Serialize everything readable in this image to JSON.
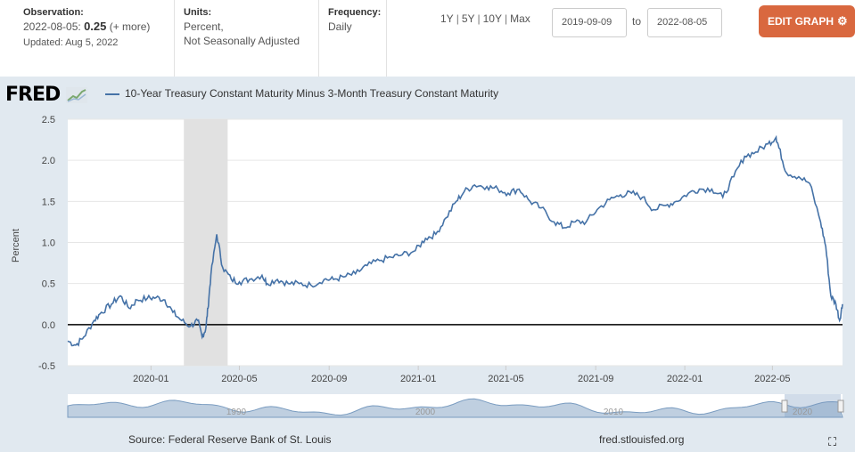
{
  "observation": {
    "label": "Observation:",
    "date": "2022-08-05:",
    "value": "0.25",
    "change": "(+ more)",
    "updated": "Updated: Aug 5, 2022"
  },
  "units": {
    "label": "Units:",
    "line1": "Percent,",
    "line2": "Not Seasonally Adjusted"
  },
  "frequency": {
    "label": "Frequency:",
    "value": "Daily"
  },
  "ranges": [
    "1Y",
    "5Y",
    "10Y",
    "Max"
  ],
  "date_from": "2019-09-09",
  "date_to": "2022-08-05",
  "to_label": "to",
  "edit_button": "EDIT GRAPH",
  "logo_text": "FRED",
  "source": "Source: Federal Reserve Bank of St. Louis",
  "site": "fred.stlouisfed.org",
  "colors": {
    "line": "#4572a7",
    "accent": "#d9683f",
    "recession": "#e1e1e1"
  },
  "chart_data": {
    "type": "line",
    "title": "",
    "ylabel": "Percent",
    "ylim": [
      -0.5,
      2.5
    ],
    "yticks": [
      "2.5",
      "2.0",
      "1.5",
      "1.0",
      "0.5",
      "0.0",
      "-0.5"
    ],
    "xticks": [
      "2020-01",
      "2020-05",
      "2020-09",
      "2021-01",
      "2021-05",
      "2021-09",
      "2022-01",
      "2022-05"
    ],
    "navigator_labels": [
      "1990",
      "2000",
      "2010",
      "2020"
    ],
    "series": [
      {
        "name": "10-Year Treasury Constant Maturity Minus 3-Month Treasury Constant Maturity",
        "x": [
          "2019-09-09",
          "2019-09-20",
          "2019-10-01",
          "2019-10-15",
          "2019-10-25",
          "2019-11-08",
          "2019-11-20",
          "2019-12-02",
          "2019-12-13",
          "2019-12-27",
          "2020-01-08",
          "2020-01-20",
          "2020-01-31",
          "2020-02-12",
          "2020-02-24",
          "2020-03-05",
          "2020-03-11",
          "2020-03-16",
          "2020-03-19",
          "2020-03-23",
          "2020-03-31",
          "2020-04-08",
          "2020-04-20",
          "2020-05-01",
          "2020-05-15",
          "2020-06-01",
          "2020-06-08",
          "2020-06-22",
          "2020-07-07",
          "2020-07-22",
          "2020-08-07",
          "2020-08-25",
          "2020-09-07",
          "2020-09-21",
          "2020-10-07",
          "2020-10-23",
          "2020-11-09",
          "2020-11-25",
          "2020-12-10",
          "2020-12-28",
          "2021-01-11",
          "2021-01-25",
          "2021-02-08",
          "2021-02-22",
          "2021-03-05",
          "2021-03-19",
          "2021-04-05",
          "2021-04-20",
          "2021-05-04",
          "2021-05-19",
          "2021-06-03",
          "2021-06-18",
          "2021-07-06",
          "2021-07-20",
          "2021-08-04",
          "2021-08-19",
          "2021-09-03",
          "2021-09-20",
          "2021-10-05",
          "2021-10-20",
          "2021-11-04",
          "2021-11-19",
          "2021-12-06",
          "2021-12-20",
          "2022-01-06",
          "2022-01-21",
          "2022-02-07",
          "2022-02-22",
          "2022-03-09",
          "2022-03-24",
          "2022-04-08",
          "2022-04-25",
          "2022-05-06",
          "2022-05-10",
          "2022-05-20",
          "2022-06-06",
          "2022-06-21",
          "2022-07-06",
          "2022-07-13",
          "2022-07-20",
          "2022-07-27",
          "2022-08-01",
          "2022-08-05"
        ],
        "y": [
          -0.2,
          -0.25,
          -0.15,
          0.05,
          0.15,
          0.25,
          0.35,
          0.2,
          0.3,
          0.32,
          0.33,
          0.3,
          0.15,
          0.05,
          -0.02,
          0.05,
          -0.15,
          -0.05,
          0.2,
          0.6,
          1.1,
          0.7,
          0.55,
          0.52,
          0.55,
          0.6,
          0.5,
          0.55,
          0.5,
          0.5,
          0.48,
          0.55,
          0.55,
          0.58,
          0.62,
          0.72,
          0.78,
          0.82,
          0.85,
          0.9,
          1.05,
          1.1,
          1.3,
          1.5,
          1.62,
          1.7,
          1.68,
          1.65,
          1.6,
          1.65,
          1.5,
          1.42,
          1.25,
          1.18,
          1.25,
          1.25,
          1.4,
          1.52,
          1.58,
          1.6,
          1.55,
          1.4,
          1.45,
          1.5,
          1.6,
          1.65,
          1.65,
          1.55,
          1.8,
          2.05,
          2.1,
          2.2,
          2.28,
          2.15,
          1.85,
          1.8,
          1.72,
          1.25,
          0.95,
          0.35,
          0.25,
          0.05,
          0.25
        ]
      }
    ],
    "recession_shading": [
      "2020-02-15",
      "2020-04-15"
    ]
  }
}
